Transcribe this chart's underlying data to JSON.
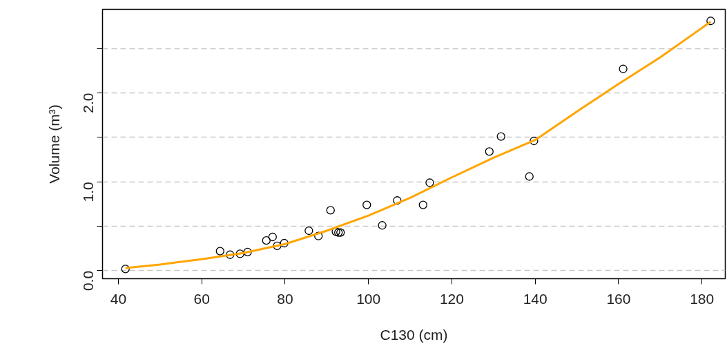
{
  "chart_data": {
    "type": "scatter",
    "xlabel": "C130 (cm)",
    "ylabel": "Volume (m³)",
    "xlim": [
      36.2,
      185.6
    ],
    "ylim": [
      -0.09,
      2.94
    ],
    "xticks": [
      40,
      60,
      80,
      100,
      120,
      140,
      160,
      180
    ],
    "yticks": [
      {
        "value": 0,
        "label": "0.0"
      },
      {
        "value": 0.5,
        "label": null
      },
      {
        "value": 1,
        "label": "1.0"
      },
      {
        "value": 1.5,
        "label": null
      },
      {
        "value": 2,
        "label": "2.0"
      },
      {
        "value": 2.5,
        "label": null
      }
    ],
    "grid": "y",
    "series": [
      {
        "marker": "circle",
        "color": "#000000",
        "x": [
          41.7,
          64.4,
          66.8,
          69.2,
          71.0,
          75.5,
          77.0,
          78.1,
          79.8,
          85.7,
          88.0,
          90.9,
          92.2,
          92.8,
          93.3,
          99.6,
          103.3,
          106.9,
          113.1,
          114.7,
          129.0,
          131.8,
          138.6,
          139.7,
          161.1,
          182.1
        ],
        "values": [
          0.02,
          0.22,
          0.18,
          0.19,
          0.21,
          0.34,
          0.38,
          0.28,
          0.31,
          0.45,
          0.39,
          0.68,
          0.44,
          0.43,
          0.43,
          0.74,
          0.51,
          0.79,
          0.74,
          0.99,
          1.34,
          1.51,
          1.06,
          1.46,
          2.27,
          2.81
        ]
      },
      {
        "type": "line",
        "marker": "none",
        "color": "#ffa500",
        "line_style": "solid",
        "x": [
          41.7,
          50,
          60,
          70,
          80,
          90,
          100,
          110,
          120,
          130,
          140,
          150,
          160,
          170,
          182.1
        ],
        "values": [
          0.03,
          0.07,
          0.13,
          0.2,
          0.3,
          0.45,
          0.62,
          0.82,
          1.05,
          1.27,
          1.47,
          1.79,
          2.1,
          2.4,
          2.8
        ]
      }
    ]
  }
}
